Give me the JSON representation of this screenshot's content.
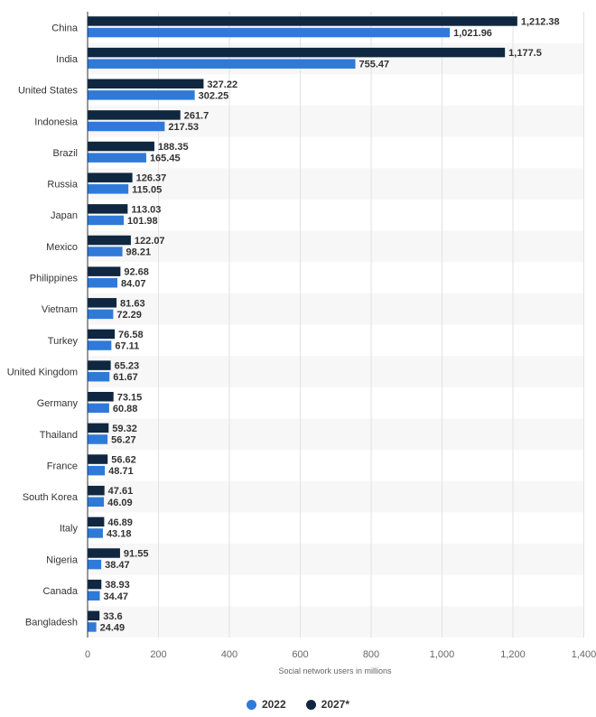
{
  "chart_data": {
    "type": "bar",
    "orientation": "horizontal",
    "categories": [
      "China",
      "India",
      "United States",
      "Indonesia",
      "Brazil",
      "Russia",
      "Japan",
      "Mexico",
      "Philippines",
      "Vietnam",
      "Turkey",
      "United Kingdom",
      "Germany",
      "Thailand",
      "France",
      "South Korea",
      "Italy",
      "Nigeria",
      "Canada",
      "Bangladesh"
    ],
    "series": [
      {
        "name": "2027*",
        "color": "#0f2740",
        "values": [
          1212.38,
          1177.5,
          327.22,
          261.7,
          188.35,
          126.37,
          113.03,
          122.07,
          92.68,
          81.63,
          76.58,
          65.23,
          73.15,
          59.32,
          56.62,
          47.61,
          46.89,
          91.55,
          38.93,
          33.6
        ],
        "labels": [
          "1,212.38",
          "1,177.5",
          "327.22",
          "261.7",
          "188.35",
          "126.37",
          "113.03",
          "122.07",
          "92.68",
          "81.63",
          "76.58",
          "65.23",
          "73.15",
          "59.32",
          "56.62",
          "47.61",
          "46.89",
          "91.55",
          "38.93",
          "33.6"
        ]
      },
      {
        "name": "2022",
        "color": "#2f7ad9",
        "values": [
          1021.96,
          755.47,
          302.25,
          217.53,
          165.45,
          115.05,
          101.98,
          98.21,
          84.07,
          72.29,
          67.11,
          61.67,
          60.88,
          56.27,
          48.71,
          46.09,
          43.18,
          38.47,
          34.47,
          24.49
        ],
        "labels": [
          "1,021.96",
          "755.47",
          "302.25",
          "217.53",
          "165.45",
          "115.05",
          "101.98",
          "98.21",
          "84.07",
          "72.29",
          "67.11",
          "61.67",
          "60.88",
          "56.27",
          "48.71",
          "46.09",
          "43.18",
          "38.47",
          "34.47",
          "24.49"
        ]
      }
    ],
    "xlabel": "Social network users in millions",
    "xlim": [
      0,
      1400
    ],
    "xticks": [
      0,
      200,
      400,
      600,
      800,
      1000,
      1200,
      1400
    ],
    "xtick_labels": [
      "0",
      "200",
      "400",
      "600",
      "800",
      "1,000",
      "1,200",
      "1,400"
    ],
    "grid": true,
    "legend_position": "bottom-center"
  },
  "legend": {
    "items": [
      {
        "label": "2022",
        "color": "#2f7ad9"
      },
      {
        "label": "2027*",
        "color": "#0f2740"
      }
    ]
  }
}
